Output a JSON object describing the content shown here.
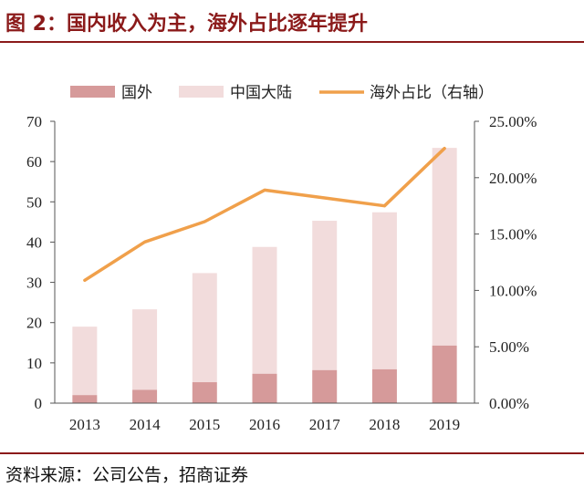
{
  "figure": {
    "title": "图 2：国内收入为主，海外占比逐年提升",
    "source": "资料来源：公司公告，招商证券"
  },
  "colors": {
    "domestic": "#d69a9a",
    "mainland": "#f2dcdc",
    "overseas_ratio": "#f0a04b",
    "title_red": "#8b1a1a"
  },
  "chart_data": {
    "type": "bar",
    "stacked": true,
    "categories": [
      "2013",
      "2014",
      "2015",
      "2016",
      "2017",
      "2018",
      "2019"
    ],
    "series": [
      {
        "name": "国外",
        "type": "bar",
        "axis": "left",
        "values": [
          2.0,
          3.3,
          5.2,
          7.3,
          8.2,
          8.4,
          14.3
        ]
      },
      {
        "name": "中国大陆",
        "type": "bar",
        "axis": "left",
        "values": [
          17.0,
          20.0,
          27.1,
          31.5,
          37.1,
          39.0,
          49.1
        ]
      },
      {
        "name": "海外占比（右轴）",
        "type": "line",
        "axis": "right",
        "values": [
          0.109,
          0.143,
          0.161,
          0.189,
          0.182,
          0.175,
          0.226
        ]
      }
    ],
    "y_left": {
      "min": 0,
      "max": 70,
      "ticks": [
        "0",
        "10",
        "20",
        "30",
        "40",
        "50",
        "60",
        "70"
      ]
    },
    "y_right": {
      "min": 0,
      "max": 0.25,
      "ticks": [
        "0.00%",
        "5.00%",
        "10.00%",
        "15.00%",
        "20.00%",
        "25.00%"
      ]
    },
    "grid": false,
    "legend_position": "top"
  }
}
